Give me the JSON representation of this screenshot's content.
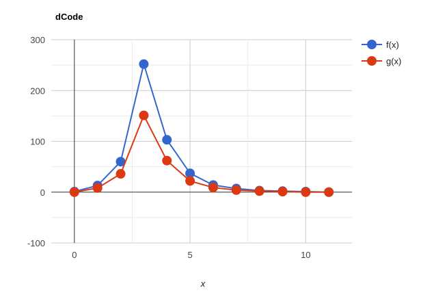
{
  "chart_data": {
    "type": "line",
    "title": "dCode",
    "xlabel": "x",
    "ylabel": "",
    "x": [
      0,
      1,
      2,
      3,
      4,
      5,
      6,
      7,
      8,
      9,
      10,
      11
    ],
    "xlim": [
      -1,
      12
    ],
    "ylim": [
      -100,
      300
    ],
    "x_ticks": [
      0,
      5,
      10
    ],
    "y_ticks": [
      -100,
      0,
      100,
      200,
      300
    ],
    "grid": true,
    "legend_position": "right",
    "series": [
      {
        "name": "f(x)",
        "color": "#3366cc",
        "values": [
          1,
          13,
          60,
          252,
          103,
          37,
          14,
          7,
          3,
          2,
          1,
          0
        ]
      },
      {
        "name": "g(x)",
        "color": "#dc3912",
        "values": [
          0,
          8,
          36,
          151,
          62,
          22,
          9,
          4,
          2,
          1,
          0,
          0
        ]
      }
    ]
  }
}
